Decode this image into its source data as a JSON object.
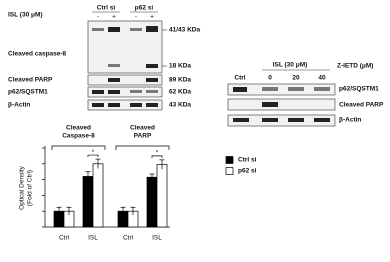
{
  "left_blot": {
    "treatment": "ISL (30 μM)",
    "groups": [
      "Ctrl si",
      "p62 si"
    ],
    "lanes": [
      "-",
      "+",
      "-",
      "+"
    ],
    "rows": [
      {
        "label": "Cleaved caspase-8",
        "sizes": [
          "41/43 KDa",
          "18 KDa"
        ]
      },
      {
        "label": "Cleaved PARP",
        "sizes": [
          "89 KDa"
        ]
      },
      {
        "label": "p62/SQSTM1",
        "sizes": [
          "62 KDa"
        ]
      },
      {
        "label": "β-Actin",
        "sizes": [
          "43 KDa"
        ]
      }
    ]
  },
  "right_blot": {
    "treatment": "ISL (30 μM)",
    "inhibitor": "Z-IETD (μM)",
    "lanes": [
      "Ctrl",
      "0",
      "20",
      "40"
    ],
    "rows": [
      "p62/SQSTM1",
      "Cleaved PARP",
      "β-Actin"
    ]
  },
  "chart_data": {
    "type": "bar",
    "y_label": [
      "Optical Density",
      "(Fold of Ctrl)"
    ],
    "group_labels": [
      [
        "Cleaved",
        "Caspase-8"
      ],
      [
        "Cleaved",
        "PARP"
      ]
    ],
    "categories": [
      "Ctrl",
      "ISL",
      "Ctrl",
      "ISL"
    ],
    "series": [
      {
        "name": "Ctrl si",
        "color": "#000000",
        "values": [
          1,
          3.2,
          1,
          3.15
        ],
        "errors": [
          0.25,
          0.3,
          0.25,
          0.2
        ]
      },
      {
        "name": "p62 si",
        "color": "#ffffff",
        "values": [
          1,
          4,
          1,
          3.95
        ],
        "errors": [
          0.25,
          0.3,
          0.25,
          0.3
        ]
      }
    ],
    "annotations": [
      "*",
      "*"
    ],
    "ylim": [
      0,
      5
    ],
    "yticks": [
      0,
      1,
      2,
      3,
      4,
      5
    ]
  }
}
